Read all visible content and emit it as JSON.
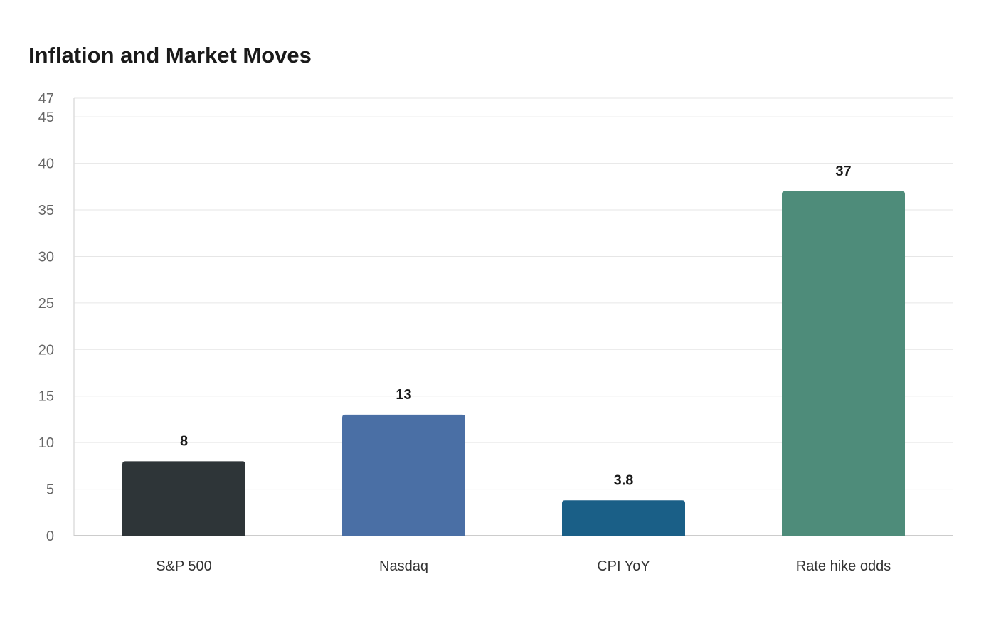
{
  "chart_data": {
    "type": "bar",
    "title": "Inflation and Market Moves",
    "xlabel": "",
    "ylabel": "",
    "categories": [
      "S&P 500",
      "Nasdaq",
      "CPI YoY",
      "Rate hike odds"
    ],
    "values": [
      8,
      13,
      3.8,
      37
    ],
    "value_labels": [
      "8",
      "13",
      "3.8",
      "37"
    ],
    "colors": [
      "#2e3538",
      "#4a6fa5",
      "#1a5f87",
      "#4e8c7a"
    ],
    "ylim": [
      0,
      47
    ],
    "yticks": [
      0,
      5,
      10,
      15,
      20,
      25,
      30,
      35,
      40,
      45,
      47
    ],
    "grid": true,
    "legend": "none"
  }
}
